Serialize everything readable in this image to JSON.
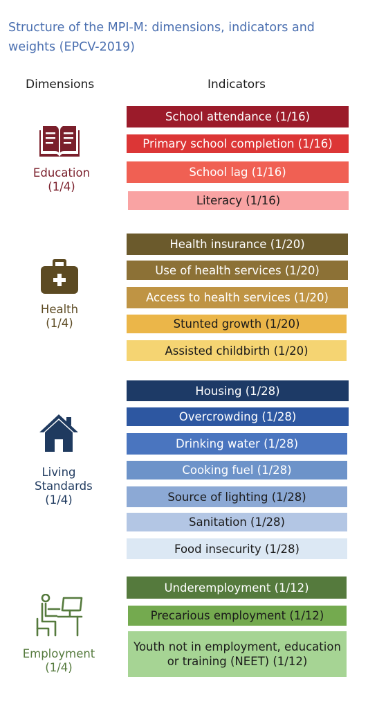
{
  "title": "Structure of the MPI-M: dimensions, indicators and weights (EPCV-2019)",
  "headers": {
    "dimensions": "Dimensions",
    "indicators": "Indicators"
  },
  "dimensions": [
    {
      "name": "Education",
      "weight": "(1/4)",
      "color": "#7a1f2b",
      "icon": "book-icon",
      "indicators": [
        {
          "label": "School attendance (1/16)",
          "bg": "#9b1b2a",
          "fg": "#ffffff"
        },
        {
          "label": "Primary school completion (1/16)",
          "bg": "#dc3636",
          "fg": "#ffffff"
        },
        {
          "label": "School lag (1/16)",
          "bg": "#f06053",
          "fg": "#ffffff"
        },
        {
          "label": "Literacy (1/16)",
          "bg": "#f9a3a3",
          "fg": "#1a1a1a"
        }
      ]
    },
    {
      "name": "Health",
      "weight": "(1/4)",
      "color": "#5c4a22",
      "icon": "first-aid-kit-icon",
      "indicators": [
        {
          "label": "Health insurance (1/20)",
          "bg": "#6b5a2c",
          "fg": "#ffffff"
        },
        {
          "label": "Use of health services (1/20)",
          "bg": "#8c7136",
          "fg": "#ffffff"
        },
        {
          "label": "Access to health services (1/20)",
          "bg": "#bf9444",
          "fg": "#ffffff"
        },
        {
          "label": "Stunted growth (1/20)",
          "bg": "#ebb649",
          "fg": "#1a1a1a"
        },
        {
          "label": "Assisted childbirth (1/20)",
          "bg": "#f5d472",
          "fg": "#1a1a1a"
        }
      ]
    },
    {
      "name": "Living Standards",
      "weight": "(1/4)",
      "color": "#1f3a5f",
      "icon": "house-icon",
      "indicators": [
        {
          "label": "Housing (1/28)",
          "bg": "#1d3a66",
          "fg": "#ffffff"
        },
        {
          "label": "Overcrowding (1/28)",
          "bg": "#2d57a1",
          "fg": "#ffffff"
        },
        {
          "label": "Drinking water (1/28)",
          "bg": "#4a75bf",
          "fg": "#ffffff"
        },
        {
          "label": "Cooking fuel (1/28)",
          "bg": "#6d93c9",
          "fg": "#ffffff"
        },
        {
          "label": "Source of lighting (1/28)",
          "bg": "#8ca9d5",
          "fg": "#1a1a1a"
        },
        {
          "label": "Sanitation (1/28)",
          "bg": "#b3c6e4",
          "fg": "#1a1a1a"
        },
        {
          "label": "Food insecurity (1/28)",
          "bg": "#dce8f4",
          "fg": "#1a1a1a"
        }
      ]
    },
    {
      "name": "Employment",
      "weight": "(1/4)",
      "color": "#557a3d",
      "icon": "person-at-computer-icon",
      "indicators": [
        {
          "label": "Underemployment (1/12)",
          "bg": "#557a3d",
          "fg": "#ffffff"
        },
        {
          "label": "Precarious employment (1/12)",
          "bg": "#74aa4f",
          "fg": "#1a1a1a"
        },
        {
          "label": "Youth not in employment, education or training (NEET) (1/12)",
          "bg": "#a6d494",
          "fg": "#1a1a1a"
        }
      ]
    }
  ]
}
